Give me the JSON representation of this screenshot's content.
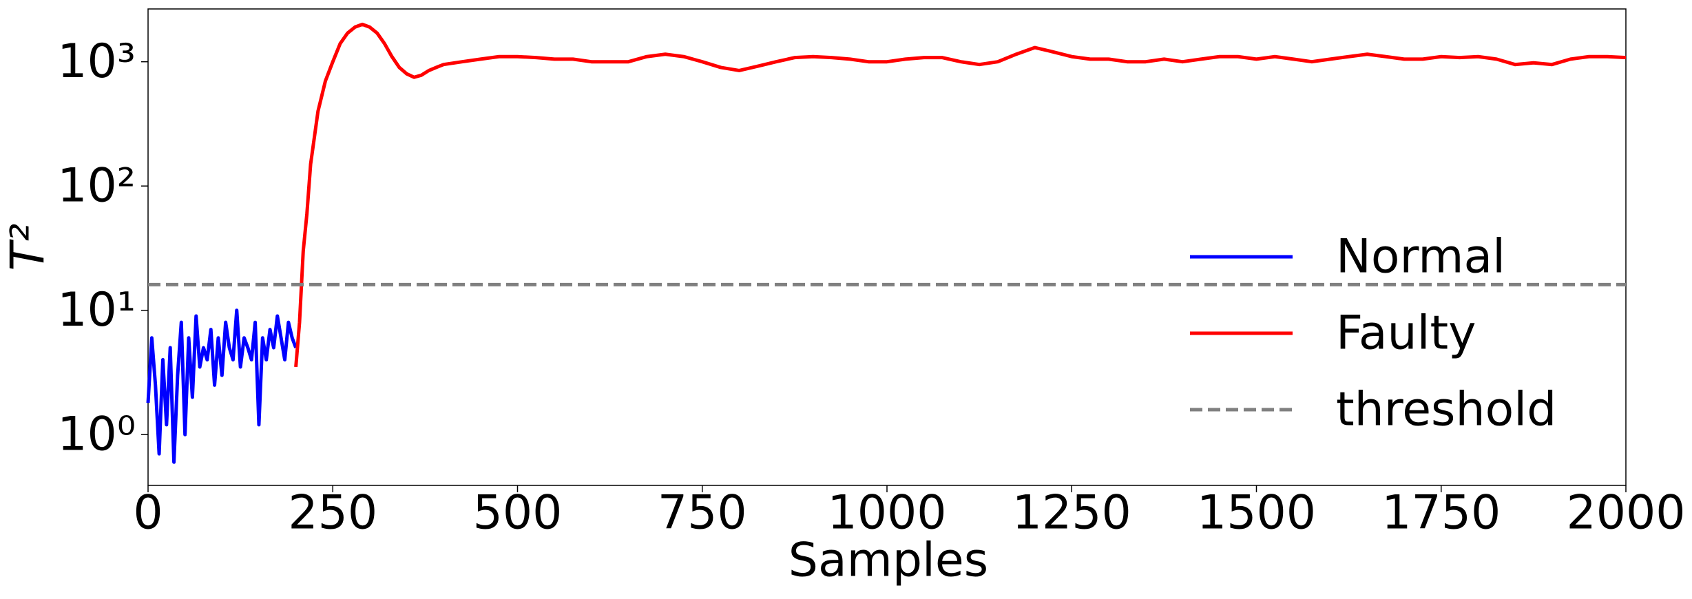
{
  "chart_data": {
    "type": "line",
    "xlabel": "Samples",
    "ylabel": "T²",
    "xlim": [
      0,
      2000
    ],
    "xticks": [
      0,
      250,
      500,
      750,
      1000,
      1250,
      1500,
      1750,
      2000
    ],
    "ylim": [
      0.39,
      2660
    ],
    "yscale": "log",
    "yticks": [
      {
        "value": 1,
        "label": "10⁰"
      },
      {
        "value": 10,
        "label": "10¹"
      },
      {
        "value": 100,
        "label": "10²"
      },
      {
        "value": 1000,
        "label": "10³"
      }
    ],
    "grid": false,
    "legend": "center right",
    "series": [
      {
        "name": "Normal",
        "color": "#0000ff",
        "linestyle": "solid",
        "x": [
          0,
          5,
          10,
          15,
          20,
          25,
          30,
          35,
          40,
          45,
          50,
          55,
          60,
          65,
          70,
          75,
          80,
          85,
          90,
          95,
          100,
          105,
          110,
          115,
          120,
          125,
          130,
          135,
          140,
          145,
          150,
          155,
          160,
          165,
          170,
          175,
          180,
          185,
          190,
          195,
          200
        ],
        "values": [
          1.8,
          6,
          2.5,
          0.7,
          4,
          1.2,
          5,
          0.6,
          3,
          8,
          1,
          6,
          2,
          9,
          3.5,
          5,
          4,
          7,
          2.5,
          6,
          3,
          8,
          5,
          4,
          10,
          3.5,
          6,
          5,
          4,
          8,
          1.2,
          6,
          4,
          7,
          5,
          9,
          6,
          4,
          8,
          6,
          5
        ]
      },
      {
        "name": "Faulty",
        "color": "#ff0000",
        "linestyle": "solid",
        "x": [
          200,
          205,
          210,
          215,
          220,
          230,
          240,
          250,
          260,
          270,
          280,
          290,
          300,
          310,
          320,
          330,
          340,
          350,
          360,
          370,
          380,
          390,
          400,
          425,
          450,
          475,
          500,
          525,
          550,
          575,
          600,
          625,
          650,
          675,
          700,
          725,
          750,
          775,
          800,
          825,
          850,
          875,
          900,
          925,
          950,
          975,
          1000,
          1025,
          1050,
          1075,
          1100,
          1125,
          1150,
          1175,
          1200,
          1225,
          1250,
          1275,
          1300,
          1325,
          1350,
          1375,
          1400,
          1425,
          1450,
          1475,
          1500,
          1525,
          1550,
          1575,
          1600,
          1625,
          1650,
          1675,
          1700,
          1725,
          1750,
          1775,
          1800,
          1825,
          1850,
          1875,
          1900,
          1925,
          1950,
          1975,
          2000
        ],
        "values": [
          3.5,
          8,
          30,
          60,
          150,
          400,
          700,
          1000,
          1400,
          1700,
          1900,
          2000,
          1900,
          1700,
          1400,
          1100,
          900,
          800,
          750,
          780,
          850,
          900,
          950,
          1000,
          1050,
          1100,
          1100,
          1080,
          1050,
          1050,
          1000,
          1000,
          1000,
          1100,
          1150,
          1100,
          1000,
          900,
          850,
          920,
          1000,
          1080,
          1100,
          1080,
          1050,
          1000,
          1000,
          1050,
          1080,
          1080,
          1000,
          950,
          1000,
          1150,
          1300,
          1200,
          1100,
          1050,
          1050,
          1000,
          1000,
          1050,
          1000,
          1050,
          1100,
          1100,
          1050,
          1100,
          1050,
          1000,
          1050,
          1100,
          1150,
          1100,
          1050,
          1050,
          1100,
          1080,
          1100,
          1050,
          950,
          980,
          950,
          1050,
          1100,
          1100,
          1080
        ]
      },
      {
        "name": "threshold",
        "color": "#808080",
        "linestyle": "dashed",
        "x": [
          0,
          2000
        ],
        "values": [
          16.1,
          16.1
        ]
      }
    ]
  }
}
